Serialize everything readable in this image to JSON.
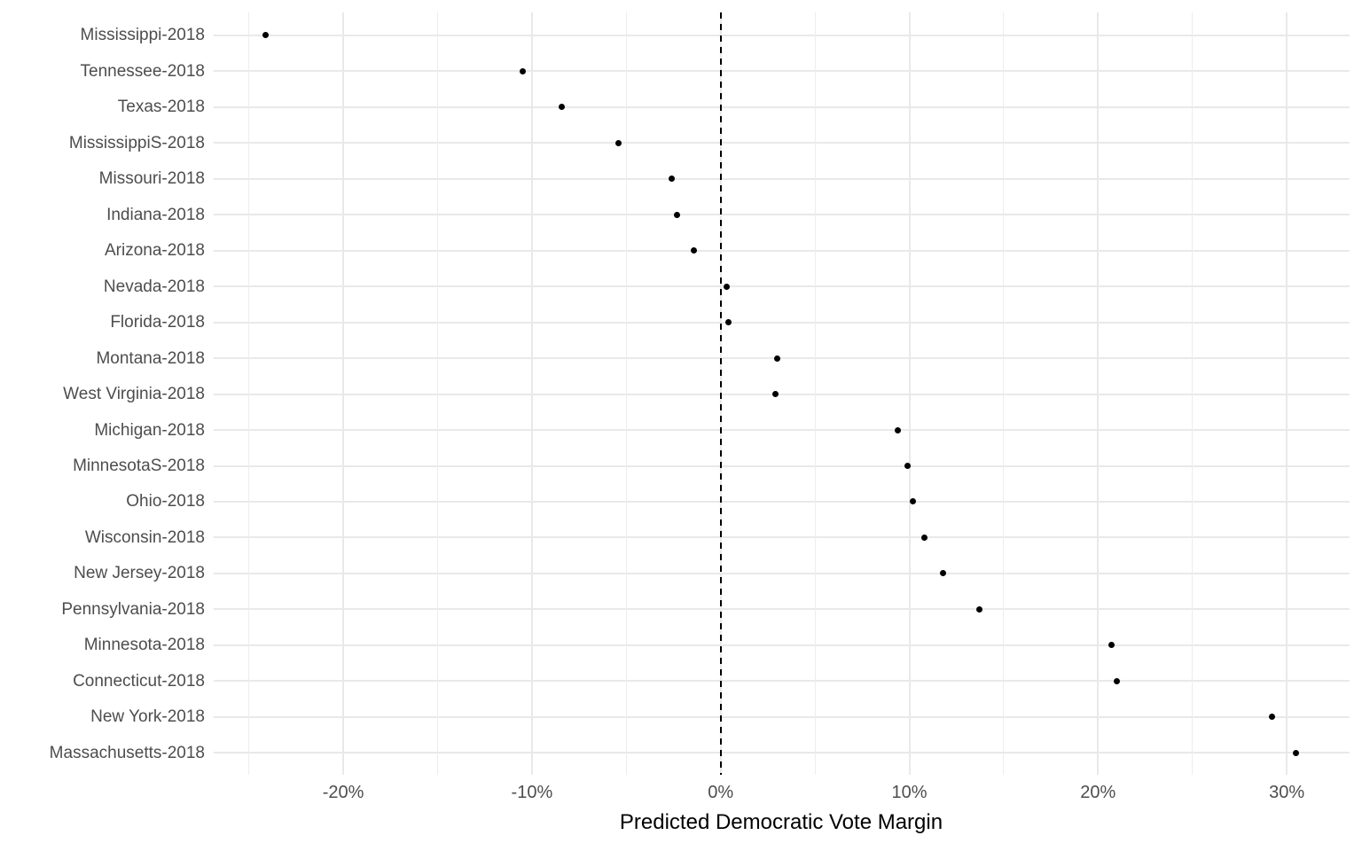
{
  "chart_data": {
    "type": "scatter",
    "subtype": "horizontal-dot-plot",
    "title": "",
    "xlabel": "Predicted Democratic Vote Margin",
    "ylabel": "",
    "xlim": [
      -26.9,
      33.3
    ],
    "grid": true,
    "x_tick_values": [
      -20,
      -10,
      0,
      10,
      20,
      30
    ],
    "x_tick_labels": [
      "-20%",
      "-10%",
      "0%",
      "10%",
      "20%",
      "30%"
    ],
    "x_minor_gridline_values": [
      -25,
      -15,
      -5,
      5,
      15,
      25
    ],
    "reference_line_x": 0,
    "reference_line_style": "dashed",
    "categories": [
      "Mississippi-2018",
      "Tennessee-2018",
      "Texas-2018",
      "MississippiS-2018",
      "Missouri-2018",
      "Indiana-2018",
      "Arizona-2018",
      "Nevada-2018",
      "Florida-2018",
      "Montana-2018",
      "West Virginia-2018",
      "Michigan-2018",
      "MinnesotaS-2018",
      "Ohio-2018",
      "Wisconsin-2018",
      "New Jersey-2018",
      "Pennsylvania-2018",
      "Minnesota-2018",
      "Connecticut-2018",
      "New York-2018",
      "Massachusetts-2018"
    ],
    "values_percent": [
      -24.1,
      -10.5,
      -8.4,
      -5.4,
      -2.6,
      -2.3,
      -1.4,
      0.3,
      0.4,
      3.0,
      2.9,
      9.4,
      9.9,
      10.2,
      10.8,
      11.8,
      13.7,
      20.7,
      21.0,
      29.2,
      30.5
    ],
    "colors": {
      "point": "#000000",
      "gridline_major": "#e9e9e9",
      "gridline_minor": "#ededed",
      "reference_line": "#000000",
      "axis_text": "#4d4d4d",
      "axis_title": "#000000",
      "background": "#ffffff"
    }
  }
}
